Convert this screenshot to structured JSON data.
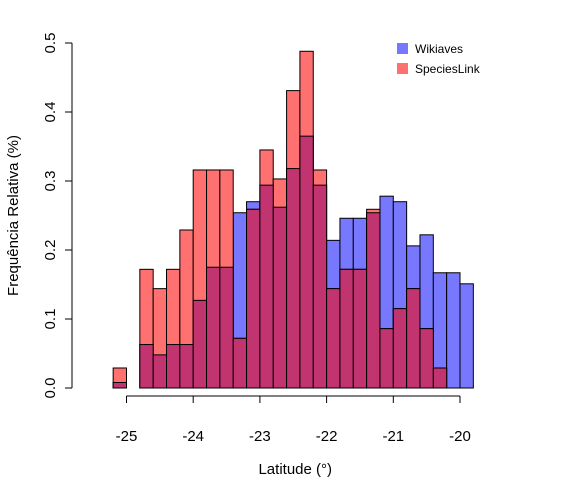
{
  "chart_data": {
    "type": "bar",
    "subtype": "overlapping-histogram",
    "title": "",
    "xlabel": "Latitude (°)",
    "ylabel": "Frequência Relativa (%)",
    "xlim": [
      -25.25,
      -19.75
    ],
    "ylim": [
      0,
      0.5
    ],
    "bin_width": 0.2,
    "x_ticks": [
      -25,
      -24,
      -23,
      -22,
      -21,
      -20
    ],
    "x_tick_labels": [
      "-25",
      "-24",
      "-23",
      "-22",
      "-21",
      "-20"
    ],
    "y_ticks": [
      0,
      0.1,
      0.2,
      0.3,
      0.4,
      0.5
    ],
    "y_tick_labels": [
      "0.0",
      "0.1",
      "0.2",
      "0.3",
      "0.4",
      "0.5"
    ],
    "legend_position": "top-right",
    "bin_edges": [
      -25.2,
      -25.0,
      -24.8,
      -24.6,
      -24.4,
      -24.2,
      -24.0,
      -23.8,
      -23.6,
      -23.4,
      -23.2,
      -23.0,
      -22.8,
      -22.6,
      -22.4,
      -22.2,
      -22.0,
      -21.8,
      -21.6,
      -21.4,
      -21.2,
      -21.0,
      -20.8,
      -20.6,
      -20.4,
      -20.2,
      -20.0,
      -19.8
    ],
    "series": [
      {
        "name": "Wikiaves",
        "color": "#7878ff",
        "values": [
          0.008,
          0.0,
          0.063,
          0.048,
          0.063,
          0.063,
          0.127,
          0.175,
          0.175,
          0.254,
          0.27,
          0.294,
          0.262,
          0.318,
          0.365,
          0.294,
          0.214,
          0.246,
          0.246,
          0.254,
          0.278,
          0.27,
          0.206,
          0.222,
          0.167,
          0.167,
          0.151,
          0.048
        ]
      },
      {
        "name": "SpeciesLink",
        "color": "#ff7070",
        "values": [
          0.029,
          0.0,
          0.172,
          0.144,
          0.172,
          0.229,
          0.316,
          0.316,
          0.316,
          0.072,
          0.259,
          0.345,
          0.303,
          0.431,
          0.488,
          0.316,
          0.144,
          0.172,
          0.172,
          0.259,
          0.086,
          0.115,
          0.144,
          0.086,
          0.029,
          0.0,
          0.0,
          0.0
        ]
      }
    ],
    "overlap_color": "#c23470"
  }
}
